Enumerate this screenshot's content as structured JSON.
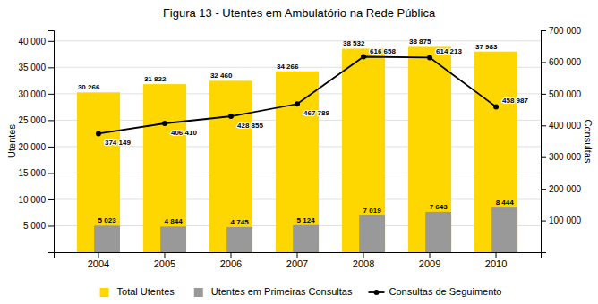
{
  "chart_data": {
    "type": "bar",
    "title": "Figura 13 - Utentes em Ambulatório na Rede Pública",
    "categories": [
      "2004",
      "2005",
      "2006",
      "2007",
      "2008",
      "2009",
      "2010"
    ],
    "ylabel": "Utentes",
    "y2label": "Consultas",
    "series": [
      {
        "name": "Total Utentes",
        "type": "bar",
        "color": "#FFD700",
        "values": [
          30266,
          31822,
          32460,
          34266,
          38532,
          38875,
          37983
        ],
        "value_labels": [
          "30 266",
          "31 822",
          "32 460",
          "34 266",
          "38 532",
          "38 875",
          "37 983"
        ]
      },
      {
        "name": "Utentes em Primeiras Consultas",
        "type": "bar",
        "color": "#999999",
        "values": [
          5023,
          4844,
          4745,
          5124,
          7019,
          7643,
          8444
        ],
        "value_labels": [
          "5 023",
          "4 844",
          "4 745",
          "5 124",
          "7 019",
          "7 643",
          "8 444"
        ]
      },
      {
        "name": "Consultas de Seguimento",
        "type": "line",
        "axis": "y2",
        "color": "#000000",
        "marker": "circle",
        "values": [
          374149,
          406410,
          428855,
          467789,
          616658,
          614213,
          458987
        ],
        "value_labels": [
          "374 149",
          "406 410",
          "428 855",
          "467 789",
          "616 658",
          "614 213",
          "458 987"
        ]
      }
    ],
    "ylim": [
      0,
      42000
    ],
    "yticks": [
      {
        "value": 5000,
        "label": "5 000"
      },
      {
        "value": 10000,
        "label": "10 000"
      },
      {
        "value": 15000,
        "label": "15 000"
      },
      {
        "value": 20000,
        "label": "20 000"
      },
      {
        "value": 25000,
        "label": "25 000"
      },
      {
        "value": 30000,
        "label": "30 000"
      },
      {
        "value": 35000,
        "label": "35 000"
      },
      {
        "value": 40000,
        "label": "40 000"
      }
    ],
    "y2lim": [
      0,
      700000
    ],
    "y2ticks": [
      {
        "value": 100000,
        "label": "100 000"
      },
      {
        "value": 200000,
        "label": "200 000"
      },
      {
        "value": 300000,
        "label": "300 000"
      },
      {
        "value": 400000,
        "label": "400 000"
      },
      {
        "value": 500000,
        "label": "500 000"
      },
      {
        "value": 600000,
        "label": "600 000"
      },
      {
        "value": 700000,
        "label": "700 000"
      }
    ],
    "grid": true,
    "legend": "bottom",
    "data_labels": true
  }
}
